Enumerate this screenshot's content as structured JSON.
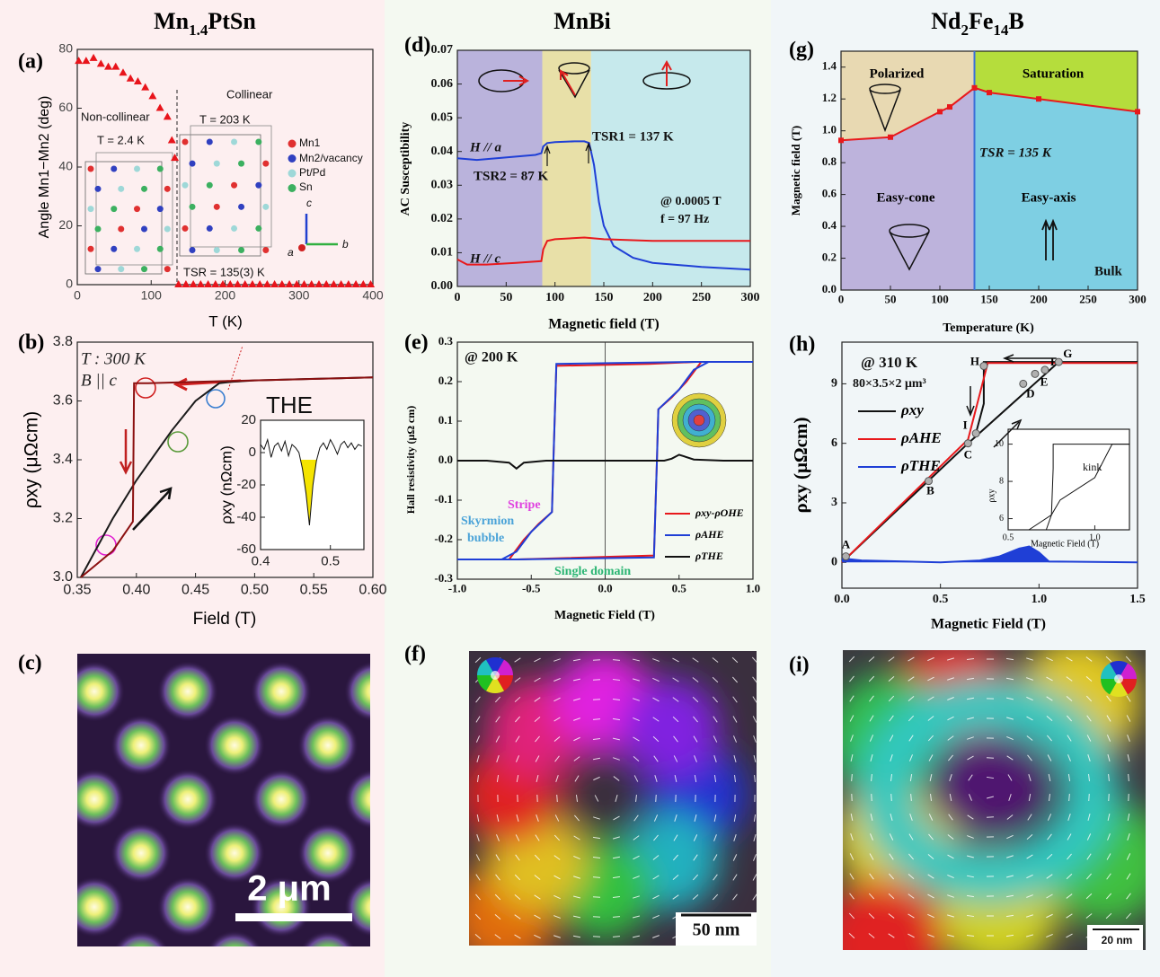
{
  "columns": [
    [
      "Mn",
      "1.4",
      "PtSn"
    ],
    [
      "MnBi"
    ],
    [
      "Nd",
      "2",
      "Fe",
      "14",
      "B"
    ]
  ],
  "chart_data": [
    {
      "type": "scatter",
      "label": "(a)",
      "xlabel": "T (K)",
      "ylabel": "Angle Mn1−Mn2 (deg)",
      "xlim": [
        0,
        400
      ],
      "xticks": [
        0,
        100,
        200,
        300,
        400
      ],
      "ylim": [
        0,
        80
      ],
      "yticks": [
        0,
        20,
        40,
        60,
        80
      ],
      "series": [
        {
          "color": "#e8141b",
          "x": [
            2,
            12,
            22,
            32,
            42,
            52,
            62,
            72,
            82,
            92,
            102,
            112,
            122,
            128,
            132,
            137,
            147,
            157,
            167,
            177,
            187,
            197,
            207,
            217,
            227,
            237,
            247,
            257,
            267,
            277,
            287,
            297,
            307,
            317,
            327,
            337,
            347,
            357,
            367,
            377,
            387,
            397
          ],
          "values": [
            76,
            76,
            77,
            75,
            74,
            74,
            72,
            70,
            69,
            67,
            64,
            60,
            57,
            49,
            43,
            0,
            0,
            0,
            0,
            0,
            0,
            0,
            0,
            0,
            0,
            0,
            0,
            0,
            0,
            0,
            0,
            0,
            0,
            0,
            0,
            0,
            0,
            0,
            0,
            0,
            0,
            0
          ]
        }
      ],
      "annotations": [
        "Non-collinear",
        "Collinear",
        "T = 2.4 K",
        "T = 203 K",
        "Mn1",
        "Mn2/vacancy",
        "Pt/Pd",
        "Sn",
        "TSR = 135(3) K",
        "c",
        "a",
        "b"
      ]
    },
    {
      "type": "line",
      "label": "(b)",
      "xlabel": "Field (T)",
      "ylabel": "ρxy (μΩcm)",
      "xlim": [
        0.35,
        0.6
      ],
      "xticks": [
        0.35,
        {
          "value": 0.4,
          "label": "0.40"
        },
        0.45,
        {
          "value": 0.5,
          "label": "0.50"
        },
        0.55,
        {
          "value": 0.6,
          "label": "0.60"
        }
      ],
      "ylim": [
        3.0,
        3.8
      ],
      "yticks": [
        {
          "value": 3,
          "label": "3.0"
        },
        3.2,
        3.4,
        3.6,
        3.8
      ],
      "series": [
        {
          "color": "#1a1a1a",
          "x": [
            0.353,
            0.38,
            0.4,
            0.43,
            0.45,
            0.47,
            0.48,
            0.5,
            0.55,
            0.6
          ],
          "values": [
            3.0,
            3.2,
            3.33,
            3.5,
            3.6,
            3.66,
            3.665,
            3.67,
            3.675,
            3.68
          ]
        },
        {
          "color": "#8b1010",
          "x": [
            0.6,
            0.5,
            0.45,
            0.41,
            0.398,
            0.397,
            0.38,
            0.353
          ],
          "values": [
            3.68,
            3.67,
            3.665,
            3.66,
            3.66,
            3.19,
            3.09,
            3.0
          ]
        }
      ],
      "annotations": [
        "T : 300 K",
        "B || c",
        "THE"
      ]
    },
    {
      "type": "line",
      "ylabel": "ρxy (nΩcm)",
      "xlim": [
        0.4,
        0.548
      ],
      "xticks": [
        0.4,
        0.5
      ],
      "ylim": [
        -60,
        20
      ],
      "yticks": [
        20,
        0,
        -20,
        -40,
        -60
      ],
      "series": [
        {
          "color": "#111111",
          "fill": "#f5e400",
          "x": [
            0.4,
            0.405,
            0.41,
            0.415,
            0.42,
            0.425,
            0.43,
            0.435,
            0.44,
            0.445,
            0.45,
            0.455,
            0.46,
            0.465,
            0.47,
            0.475,
            0.48,
            0.485,
            0.49,
            0.495,
            0.5,
            0.505,
            0.51,
            0.515,
            0.52,
            0.525,
            0.53,
            0.535,
            0.54,
            0.545
          ],
          "values": [
            5,
            2,
            8,
            -3,
            4,
            6,
            1,
            7,
            -2,
            5,
            3,
            0,
            -10,
            -25,
            -45,
            -20,
            -5,
            3,
            6,
            2,
            8,
            4,
            -1,
            5,
            7,
            3,
            6,
            2,
            5,
            4
          ]
        }
      ]
    },
    {
      "type": "line",
      "label": "(d)",
      "xlabel": "Magnetic field (T)",
      "ylabel": "AC Susceptibility",
      "xlim": [
        0,
        300
      ],
      "xticks": [
        0,
        50,
        100,
        150,
        200,
        250,
        300
      ],
      "ylim": [
        0,
        0.07
      ],
      "yticks": [
        {
          "value": 0,
          "label": "0.00"
        },
        {
          "value": 0.01,
          "label": "0.01"
        },
        {
          "value": 0.02,
          "label": "0.02"
        },
        {
          "value": 0.03,
          "label": "0.03"
        },
        {
          "value": 0.04,
          "label": "0.04"
        },
        {
          "value": 0.05,
          "label": "0.05"
        },
        {
          "value": 0.06,
          "label": "0.06"
        },
        {
          "value": 0.07,
          "label": "0.07"
        }
      ],
      "bands": [
        {
          "from": 0,
          "to": 87,
          "color": "#bab3dc"
        },
        {
          "from": 87,
          "to": 137,
          "color": "#e8e0a8"
        },
        {
          "from": 137,
          "to": 300,
          "color": "#c6e9ec"
        }
      ],
      "series": [
        {
          "color": "#1f3fd6",
          "x": [
            0,
            20,
            40,
            60,
            80,
            86,
            88,
            92,
            100,
            120,
            130,
            135,
            140,
            145,
            150,
            160,
            180,
            200,
            250,
            300
          ],
          "values": [
            0.038,
            0.0375,
            0.038,
            0.0385,
            0.039,
            0.0395,
            0.0415,
            0.0425,
            0.0428,
            0.043,
            0.043,
            0.0425,
            0.036,
            0.025,
            0.018,
            0.012,
            0.0085,
            0.007,
            0.0058,
            0.005
          ]
        },
        {
          "color": "#e8191c",
          "x": [
            0,
            10,
            30,
            60,
            86,
            88,
            92,
            100,
            130,
            150,
            200,
            250,
            300
          ],
          "values": [
            0.008,
            0.0065,
            0.0065,
            0.007,
            0.0075,
            0.011,
            0.0135,
            0.014,
            0.0145,
            0.014,
            0.0135,
            0.0135,
            0.0135
          ]
        }
      ],
      "annotations": [
        "H // a",
        "TSR2 = 87 K",
        "TSR1 = 137 K",
        "@ 0.0005 T",
        "f = 97 Hz",
        "H // c"
      ]
    },
    {
      "type": "line",
      "label": "(e)",
      "xlabel": "Magnetic Field (T)",
      "ylabel": "Hall resistivity (μΩ cm)",
      "xlim": [
        -1,
        1
      ],
      "xticks": [
        {
          "value": -1,
          "label": "-1.0"
        },
        -0.5,
        {
          "value": 0,
          "label": "0.0"
        },
        0.5,
        {
          "value": 1,
          "label": "1.0"
        }
      ],
      "ylim": [
        -0.3,
        0.3
      ],
      "yticks": [
        -0.3,
        -0.2,
        -0.1,
        {
          "value": 0,
          "label": "0.0"
        },
        0.1,
        0.2,
        0.3
      ],
      "series": [
        {
          "name": "ρxy-ρOHE",
          "color": "#e8191c",
          "x": [
            1,
            0.62,
            0.3,
            -0.33,
            -0.35,
            -0.36,
            -0.45,
            -0.55,
            -0.65,
            -1,
            -0.6,
            0.33,
            0.35,
            0.36,
            0.45,
            0.55,
            0.65,
            1
          ],
          "values": [
            0.25,
            0.25,
            0.245,
            0.24,
            0.0,
            -0.13,
            -0.16,
            -0.2,
            -0.25,
            -0.25,
            -0.25,
            -0.24,
            0.0,
            0.13,
            0.16,
            0.2,
            0.25,
            0.25
          ]
        },
        {
          "name": "ρAHE",
          "color": "#1f3fd6",
          "x": [
            1,
            0.6,
            -0.33,
            -0.35,
            -0.36,
            -0.5,
            -0.6,
            -0.7,
            -1,
            -0.6,
            0.33,
            0.35,
            0.36,
            0.5,
            0.6,
            0.7,
            1
          ],
          "values": [
            0.25,
            0.25,
            0.245,
            0.0,
            -0.13,
            -0.18,
            -0.23,
            -0.25,
            -0.25,
            -0.25,
            -0.245,
            0.0,
            0.13,
            0.18,
            0.23,
            0.25,
            0.25
          ]
        },
        {
          "name": "ρTHE",
          "color": "#111111",
          "x": [
            -1,
            -0.8,
            -0.65,
            -0.6,
            -0.55,
            -0.4,
            0,
            0.4,
            0.45,
            0.5,
            0.6,
            0.8,
            1
          ],
          "values": [
            0,
            0,
            -0.005,
            -0.02,
            -0.005,
            0,
            0,
            0,
            0.005,
            0.015,
            0.003,
            0,
            0
          ]
        }
      ],
      "annotations": [
        "@ 200 K",
        "Stripe",
        "Skyrmion",
        "bubble",
        "Single domain"
      ]
    },
    {
      "type": "line",
      "label": "(g)",
      "xlabel": "Temperature (K)",
      "ylabel": "Magnetic field (T)",
      "xlim": [
        0,
        300
      ],
      "xticks": [
        0,
        50,
        100,
        150,
        200,
        250,
        300
      ],
      "ylim": [
        0,
        1.5
      ],
      "yticks": [
        {
          "value": 0,
          "label": "0.0"
        },
        0.2,
        0.4,
        0.6,
        0.8,
        {
          "value": 1,
          "label": "1.0"
        },
        1.2,
        1.4
      ],
      "vline": 135,
      "regions": [
        {
          "name": "Polarized",
          "color": "#e8d9b2"
        },
        {
          "name": "Saturation",
          "color": "#b5dd3c"
        },
        {
          "name": "Easy-cone",
          "color": "#bdb3dc"
        },
        {
          "name": "Easy-axis",
          "color": "#7ecfe3"
        }
      ],
      "series": [
        {
          "color": "#e8191c",
          "marker": "square",
          "x": [
            0,
            50,
            100,
            110,
            135,
            150,
            200,
            300
          ],
          "values": [
            0.94,
            0.96,
            1.12,
            1.15,
            1.27,
            1.24,
            1.2,
            1.12
          ]
        }
      ],
      "annotations": [
        "TSR = 135 K",
        "Bulk"
      ]
    },
    {
      "type": "line",
      "label": "(h)",
      "xlabel": "Magnetic Field (T)",
      "ylabel": "ρxy (μΩcm)",
      "xlim": [
        0,
        1.5
      ],
      "xticks": [
        {
          "value": 0,
          "label": "0.0"
        },
        0.5,
        {
          "value": 1,
          "label": "1.0"
        },
        1.5
      ],
      "ylim": [
        -1.3,
        11.1
      ],
      "yticks": [
        0,
        3,
        6,
        9
      ],
      "series": [
        {
          "name": "ρxy",
          "color": "#111111",
          "x": [
            0,
            0.64,
            1.1,
            1.5,
            0.72,
            0.72,
            0.68
          ],
          "values": [
            0,
            6,
            10.1,
            10.1,
            10.1,
            8,
            6.5
          ]
        },
        {
          "name": "ρAHE",
          "color": "#e8191c",
          "x": [
            0,
            0.64,
            0.7,
            0.74,
            1.5
          ],
          "values": [
            0,
            6.2,
            8.5,
            10.05,
            10.05
          ]
        },
        {
          "name": "ρTHE",
          "color": "#1f3fd6",
          "fill": "#1f3fd6",
          "x": [
            0,
            0.1,
            0.5,
            0.7,
            0.8,
            0.9,
            0.95,
            1.0,
            1.05,
            1.5
          ],
          "values": [
            0.2,
            0.1,
            0,
            0.1,
            0.3,
            0.7,
            0.8,
            0.5,
            0.05,
            0
          ]
        }
      ],
      "points": {
        "labels": [
          "A",
          "B",
          "C",
          "I",
          "H",
          "D",
          "E",
          "F",
          "G"
        ],
        "x": [
          0.02,
          0.44,
          0.64,
          0.68,
          0.72,
          0.92,
          0.98,
          1.03,
          1.1
        ],
        "values": [
          0.3,
          4.1,
          6.0,
          6.5,
          9.9,
          9.0,
          9.5,
          9.7,
          10.1
        ]
      },
      "annotations": [
        "@ 310 K",
        "80×3.5×2 μm³"
      ]
    },
    {
      "type": "line",
      "xlabel": "Magnetic Field (T)",
      "ylabel": "ρxy",
      "xlim": [
        0.5,
        1.2
      ],
      "xticks": [
        0.5,
        {
          "value": 1,
          "label": "1.0"
        }
      ],
      "ylim": [
        5.4,
        10.8
      ],
      "yticks": [
        6,
        8,
        10
      ],
      "series": [
        {
          "color": "#111111",
          "x": [
            0.62,
            0.75,
            0.8,
            1.0,
            1.1,
            1.2
          ],
          "values": [
            5.4,
            6.2,
            7.0,
            8.2,
            10,
            10
          ]
        },
        {
          "color": "#111111",
          "x": [
            1.2,
            0.76,
            0.76,
            0.75,
            0.72
          ],
          "values": [
            10,
            10,
            8.7,
            6.2,
            5.4
          ]
        }
      ],
      "annotations": [
        "kink"
      ]
    }
  ],
  "images": [
    {
      "label": "(c)",
      "scale": "2 μm"
    },
    {
      "label": "(f)",
      "scale": "50 nm"
    },
    {
      "label": "(i)",
      "scale": "20 nm"
    }
  ]
}
